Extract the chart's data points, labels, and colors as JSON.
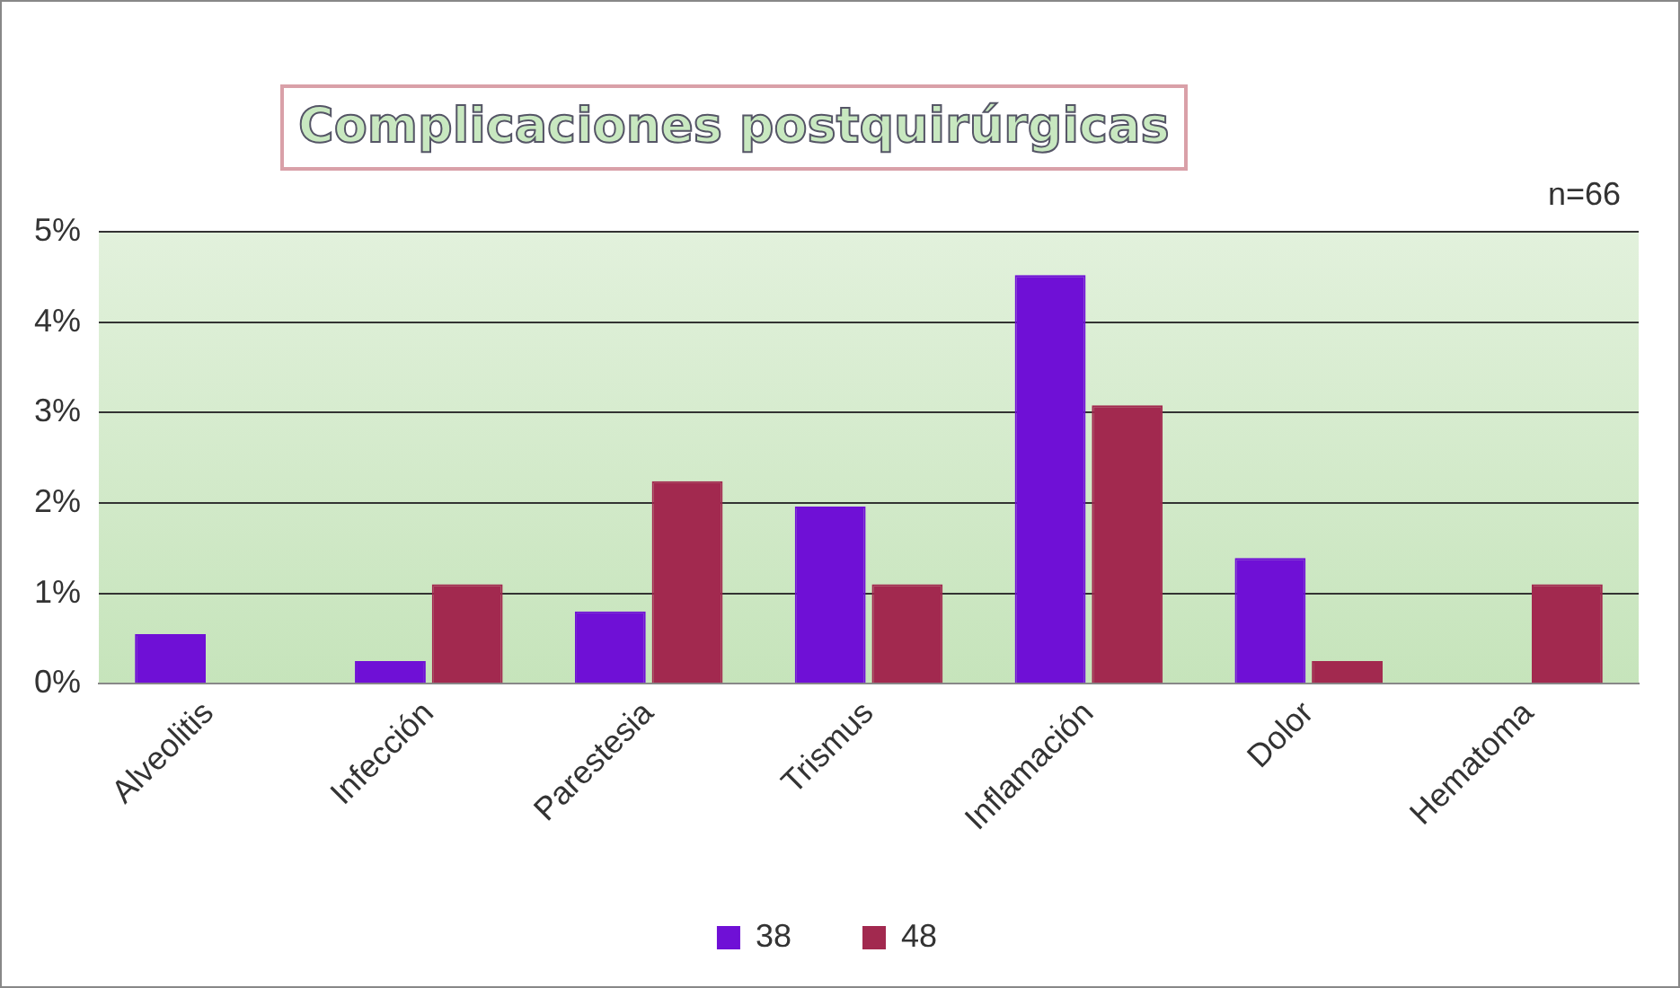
{
  "chart_data": {
    "type": "bar",
    "title": "Complicaciones postquirúrgicas",
    "annotations": [
      "n=66"
    ],
    "categories": [
      "Alveolitis",
      "Infección",
      "Parestesia",
      "Trismus",
      "Inflamación",
      "Dolor",
      "Hematoma"
    ],
    "series": [
      {
        "name": "38",
        "color": "#6f10d6",
        "values": [
          0.55,
          0.25,
          0.8,
          1.96,
          4.52,
          1.39,
          0
        ]
      },
      {
        "name": "48",
        "color": "#a2294f",
        "values": [
          0,
          1.1,
          2.24,
          1.1,
          3.08,
          0.25,
          1.1
        ]
      }
    ],
    "ylim": [
      0,
      5
    ],
    "yticks": [
      {
        "value": 0,
        "label": "0%"
      },
      {
        "value": 1,
        "label": "1%"
      },
      {
        "value": 2,
        "label": "2%"
      },
      {
        "value": 3,
        "label": "3%"
      },
      {
        "value": 4,
        "label": "4%"
      },
      {
        "value": 5,
        "label": "5%"
      }
    ],
    "grid": "y",
    "legend": "bottom"
  }
}
